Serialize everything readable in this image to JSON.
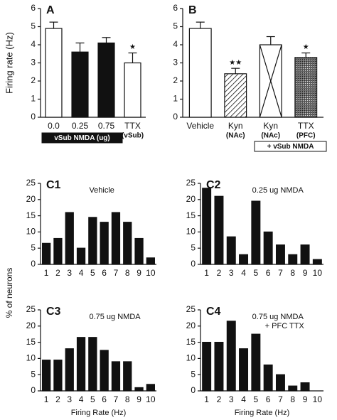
{
  "chart_data": [
    {
      "type": "bar",
      "panel_label": "A",
      "ylabel": "Firing rate (Hz)",
      "categories": [
        "0.0",
        "0.25",
        "0.75",
        "TTX"
      ],
      "category_sublabels": [
        null,
        null,
        null,
        "(vSub)"
      ],
      "values": [
        4.9,
        3.6,
        4.1,
        3.0
      ],
      "errors": [
        0.35,
        0.5,
        0.3,
        0.55
      ],
      "fills": [
        "white",
        "#111111",
        "#111111",
        "white"
      ],
      "significance": [
        null,
        null,
        null,
        "★"
      ],
      "group_label": "vSub NMDA (ug)",
      "ylim": [
        0,
        6
      ],
      "yticks": [
        0,
        1,
        2,
        3,
        4,
        5,
        6
      ],
      "grid": false
    },
    {
      "type": "bar",
      "panel_label": "B",
      "categories": [
        "Vehicle",
        "Kyn",
        "Kyn",
        "TTX"
      ],
      "category_sublabels": [
        null,
        "(NAc)",
        "(NAc)",
        "(PFC)"
      ],
      "values": [
        4.9,
        2.4,
        4.0,
        3.3
      ],
      "errors": [
        0.35,
        0.3,
        0.45,
        0.25
      ],
      "fills": [
        "white",
        "hatch",
        "cross",
        "stipple"
      ],
      "significance": [
        null,
        "★★",
        null,
        "★"
      ],
      "group_label": "+ vSub NMDA",
      "ylim": [
        0,
        6
      ],
      "yticks": [
        0,
        1,
        2,
        3,
        4,
        5,
        6
      ],
      "grid": false
    },
    {
      "type": "bar",
      "panel_label": "C1",
      "title": "Vehicle",
      "color": "#111111",
      "categories": [
        "1",
        "2",
        "3",
        "4",
        "5",
        "6",
        "7",
        "8",
        "9",
        "10"
      ],
      "values": [
        6.5,
        8,
        16,
        5,
        14.5,
        13,
        16,
        13,
        8,
        2
      ],
      "ylim": [
        0,
        25
      ],
      "yticks": [
        0,
        5,
        10,
        15,
        20,
        25
      ],
      "grid": false
    },
    {
      "type": "bar",
      "panel_label": "C2",
      "title": "0.25 ug NMDA",
      "color": "#111111",
      "categories": [
        "1",
        "2",
        "3",
        "4",
        "5",
        "6",
        "7",
        "8",
        "9",
        "10"
      ],
      "values": [
        23.5,
        21,
        8.5,
        3,
        19.5,
        10,
        6,
        3,
        6,
        1.5
      ],
      "ylim": [
        0,
        25
      ],
      "yticks": [
        0,
        5,
        10,
        15,
        20,
        25
      ],
      "grid": false
    },
    {
      "type": "bar",
      "panel_label": "C3",
      "title": "0.75 ug NMDA",
      "color": "#111111",
      "xlabel": "Firing Rate (Hz)",
      "categories": [
        "1",
        "2",
        "3",
        "4",
        "5",
        "6",
        "7",
        "8",
        "9",
        "10"
      ],
      "values": [
        9.5,
        9.5,
        13,
        16.5,
        16.5,
        12.5,
        9,
        9,
        1,
        2
      ],
      "ylim": [
        0,
        25
      ],
      "yticks": [
        0,
        5,
        10,
        15,
        20,
        25
      ],
      "grid": false
    },
    {
      "type": "bar",
      "panel_label": "C4",
      "title": "0.75 ug NMDA",
      "subtitle": "+ PFC TTX",
      "color": "#111111",
      "xlabel": "Firing Rate (Hz)",
      "categories": [
        "1",
        "2",
        "3",
        "4",
        "5",
        "6",
        "7",
        "8",
        "9",
        "10"
      ],
      "values": [
        15,
        15,
        21.5,
        13,
        17.5,
        8,
        5,
        1.5,
        2.5,
        0
      ],
      "ylim": [
        0,
        25
      ],
      "yticks": [
        0,
        5,
        10,
        15,
        20,
        25
      ],
      "grid": false
    }
  ],
  "shared_ylabel": "% of neurons"
}
